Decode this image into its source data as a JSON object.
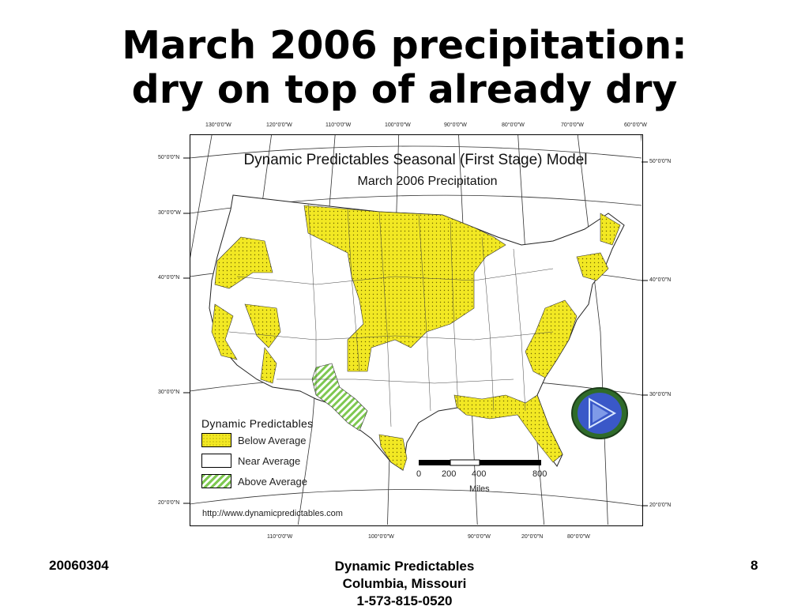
{
  "slide": {
    "title_line1": "March 2006 precipitation:",
    "title_line2": "dry on top of already dry"
  },
  "map": {
    "title": "Dynamic Predictables Seasonal (First Stage) Model",
    "subtitle": "March 2006 Precipitation",
    "top_ticks": [
      "130°0'0\"W",
      "120°0'0\"W",
      "110°0'0\"W",
      "100°0'0\"W",
      "90°0'0\"W",
      "80°0'0\"W",
      "70°0'0\"W",
      "60°0'0\"W"
    ],
    "bottom_ticks": [
      "110°0'0\"W",
      "100°0'0\"W",
      "90°0'0\"W",
      "20°0'0\"N",
      "80°0'0\"W"
    ],
    "left_ticks": [
      "50°0'0\"N",
      "30°0'0\"W",
      "40°0'0\"N",
      "30°0'0\"N",
      "20°0'0\"N"
    ],
    "right_ticks": [
      "50°0'0\"N",
      "40°0'0\"N",
      "30°0'0\"N",
      "20°0'0\"N"
    ],
    "legend": {
      "title": "Dynamic Predictables",
      "items": [
        {
          "label": "Below Average",
          "color": "#f2e823"
        },
        {
          "label": "Near Average",
          "color": "#ffffff"
        },
        {
          "label": "Above Average",
          "color": "#7ec850"
        }
      ]
    },
    "scale": {
      "labels": [
        "0",
        "200",
        "400",
        "800"
      ],
      "unit": "Miles"
    },
    "url": "http://www.dynamicpredictables.com",
    "logo_icon": "play-triangle-logo-icon"
  },
  "footer": {
    "left": "20060304",
    "center_line1": "Dynamic Predictables",
    "center_line2": "Columbia, Missouri",
    "center_line3": "1-573-815-0520",
    "right": "8"
  }
}
